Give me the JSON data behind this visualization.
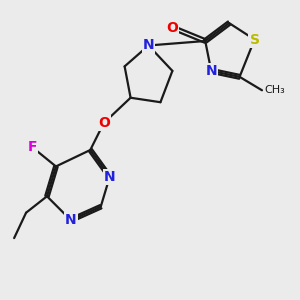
{
  "bg_color": "#ebebeb",
  "bond_color": "#1a1a1a",
  "atom_colors": {
    "O": "#ee0000",
    "N": "#2222dd",
    "S": "#bbbb00",
    "F": "#dd00dd",
    "C": "#1a1a1a"
  },
  "font_size_atom": 10,
  "lw": 1.6,
  "xlim": [
    0,
    10
  ],
  "ylim": [
    0,
    10
  ]
}
